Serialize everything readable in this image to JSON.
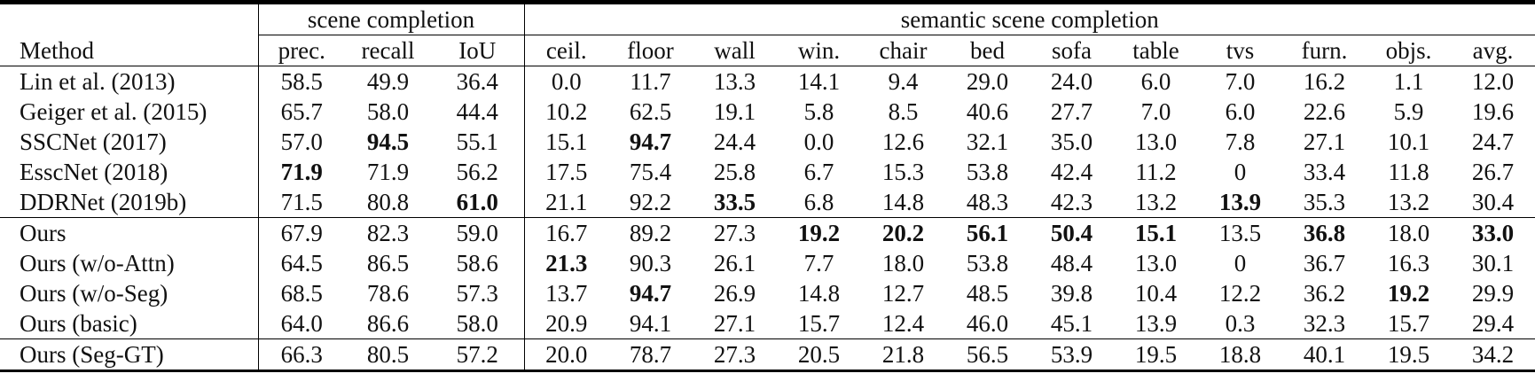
{
  "table": {
    "groups": [
      "scene completion",
      "semantic scene completion"
    ],
    "header": [
      "Method",
      "prec.",
      "recall",
      "IoU",
      "ceil.",
      "floor",
      "wall",
      "win.",
      "chair",
      "bed",
      "sofa",
      "table",
      "tvs",
      "furn.",
      "objs.",
      "avg."
    ],
    "sections": [
      [
        {
          "method": "Lin et al. (2013)",
          "cells": [
            "58.5",
            "49.9",
            "36.4",
            "0.0",
            "11.7",
            "13.3",
            "14.1",
            "9.4",
            "29.0",
            "24.0",
            "6.0",
            "7.0",
            "16.2",
            "1.1",
            "12.0"
          ]
        },
        {
          "method": "Geiger et al. (2015)",
          "cells": [
            "65.7",
            "58.0",
            "44.4",
            "10.2",
            "62.5",
            "19.1",
            "5.8",
            "8.5",
            "40.6",
            "27.7",
            "7.0",
            "6.0",
            "22.6",
            "5.9",
            "19.6"
          ]
        },
        {
          "method": "SSCNet (2017)",
          "cells": [
            "57.0",
            {
              "text": "94.5",
              "bold": true
            },
            "55.1",
            "15.1",
            {
              "text": "94.7",
              "bold": true
            },
            "24.4",
            "0.0",
            "12.6",
            "32.1",
            "35.0",
            "13.0",
            "7.8",
            "27.1",
            "10.1",
            "24.7"
          ]
        },
        {
          "method": "EsscNet (2018)",
          "cells": [
            {
              "text": "71.9",
              "bold": true
            },
            "71.9",
            "56.2",
            "17.5",
            "75.4",
            "25.8",
            "6.7",
            "15.3",
            "53.8",
            "42.4",
            "11.2",
            "0",
            "33.4",
            "11.8",
            "26.7"
          ]
        },
        {
          "method": "DDRNet (2019b)",
          "cells": [
            "71.5",
            "80.8",
            {
              "text": "61.0",
              "bold": true
            },
            "21.1",
            "92.2",
            {
              "text": "33.5",
              "bold": true
            },
            "6.8",
            "14.8",
            "48.3",
            "42.3",
            "13.2",
            {
              "text": "13.9",
              "bold": true
            },
            "35.3",
            "13.2",
            "30.4"
          ]
        }
      ],
      [
        {
          "method": "Ours",
          "cells": [
            "67.9",
            "82.3",
            "59.0",
            "16.7",
            "89.2",
            "27.3",
            {
              "text": "19.2",
              "bold": true
            },
            {
              "text": "20.2",
              "bold": true
            },
            {
              "text": "56.1",
              "bold": true
            },
            {
              "text": "50.4",
              "bold": true
            },
            {
              "text": "15.1",
              "bold": true
            },
            "13.5",
            {
              "text": "36.8",
              "bold": true
            },
            "18.0",
            {
              "text": "33.0",
              "bold": true
            }
          ]
        },
        {
          "method": "Ours (w/o-Attn)",
          "cells": [
            "64.5",
            "86.5",
            "58.6",
            {
              "text": "21.3",
              "bold": true
            },
            "90.3",
            "26.1",
            "7.7",
            "18.0",
            "53.8",
            "48.4",
            "13.0",
            "0",
            "36.7",
            "16.3",
            "30.1"
          ]
        },
        {
          "method": "Ours (w/o-Seg)",
          "cells": [
            "68.5",
            "78.6",
            "57.3",
            "13.7",
            {
              "text": "94.7",
              "bold": true
            },
            "26.9",
            "14.8",
            "12.7",
            "48.5",
            "39.8",
            "10.4",
            "12.2",
            "36.2",
            {
              "text": "19.2",
              "bold": true
            },
            "29.9"
          ]
        },
        {
          "method": "Ours (basic)",
          "cells": [
            "64.0",
            "86.6",
            "58.0",
            "20.9",
            "94.1",
            "27.1",
            "15.7",
            "12.4",
            "46.0",
            "45.1",
            "13.9",
            "0.3",
            "32.3",
            "15.7",
            "29.4"
          ]
        }
      ],
      [
        {
          "method": "Ours (Seg-GT)",
          "cells": [
            "66.3",
            "80.5",
            "57.2",
            "20.0",
            "78.7",
            "27.3",
            "20.5",
            "21.8",
            "56.5",
            "53.9",
            "19.5",
            "18.8",
            "40.1",
            "19.5",
            "34.2"
          ]
        }
      ]
    ]
  }
}
